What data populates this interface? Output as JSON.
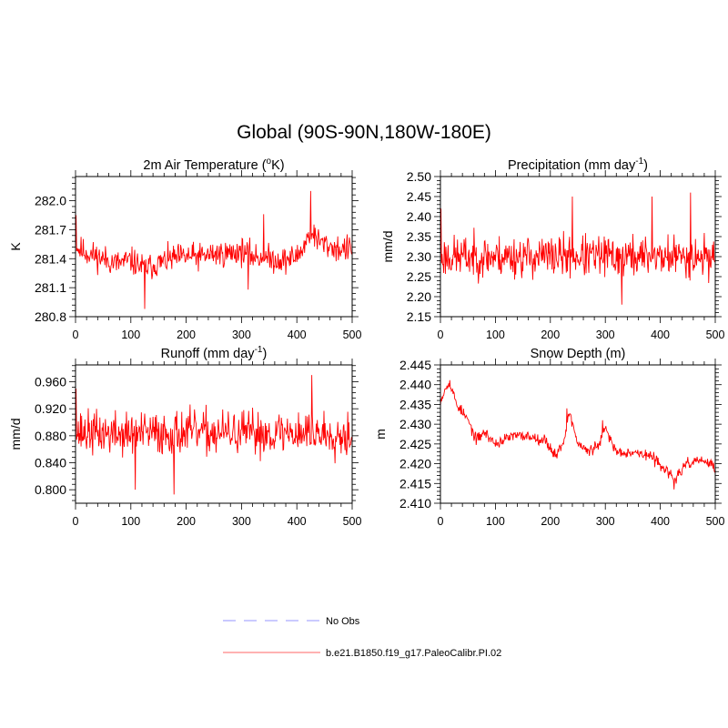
{
  "title": "Global (90S-90N,180W-180E)",
  "colors": {
    "series": "#ff0000",
    "obs": "#aaaaff",
    "legend_model": "#ff9999",
    "axis": "#000000"
  },
  "legend": [
    {
      "label": "No Obs",
      "style": "dashed",
      "color": "#aaaaff"
    },
    {
      "label": "b.e21.B1850.f19_g17.PaleoCalibr.PI.02",
      "style": "solid",
      "color": "#ff9999"
    }
  ],
  "chart_data": [
    {
      "type": "line",
      "title": "2m Air Temperature (",
      "title_sup": "o",
      "title_tail": "K)",
      "ylabel": "K",
      "xlabel": "",
      "xlim": [
        0,
        500
      ],
      "ylim": [
        280.8,
        282.25
      ],
      "xticks": [
        "0",
        "100",
        "200",
        "300",
        "400",
        "500"
      ],
      "yticks": [
        "280.8",
        "281.1",
        "281.4",
        "281.7",
        "282.0"
      ],
      "series_name": "b.e21.B1850.f19_g17.PaleoCalibr.PI.02",
      "n_points": 500,
      "keypoints_x": [
        0,
        5,
        25,
        50,
        75,
        100,
        125,
        150,
        175,
        200,
        225,
        250,
        275,
        300,
        325,
        350,
        375,
        400,
        415,
        425,
        435,
        450,
        475,
        500
      ],
      "keypoints_y": [
        281.6,
        281.5,
        281.45,
        281.4,
        281.35,
        281.38,
        281.3,
        281.35,
        281.4,
        281.42,
        281.42,
        281.45,
        281.45,
        281.48,
        281.42,
        281.4,
        281.38,
        281.42,
        281.55,
        281.7,
        281.6,
        281.55,
        281.5,
        281.5
      ],
      "noise": 0.12,
      "spikes": [
        [
          1,
          281.85
        ],
        [
          125,
          280.88
        ],
        [
          312,
          281.08
        ],
        [
          425,
          282.1
        ],
        [
          340,
          281.86
        ]
      ],
      "seed": 11
    },
    {
      "type": "line",
      "title": "Precipitation (mm day",
      "title_sup": "-1",
      "title_tail": ")",
      "ylabel": "mm/d",
      "xlabel": "",
      "xlim": [
        0,
        500
      ],
      "ylim": [
        2.15,
        2.5
      ],
      "xticks": [
        "0",
        "100",
        "200",
        "300",
        "400",
        "500"
      ],
      "yticks": [
        "2.15",
        "2.20",
        "2.25",
        "2.30",
        "2.35",
        "2.40",
        "2.45",
        "2.50"
      ],
      "series_name": "b.e21.B1850.f19_g17.PaleoCalibr.PI.02",
      "n_points": 500,
      "keypoints_x": [
        0,
        100,
        200,
        300,
        400,
        500
      ],
      "keypoints_y": [
        2.3,
        2.3,
        2.3,
        2.3,
        2.3,
        2.3
      ],
      "noise": 0.045,
      "spikes": [
        [
          1,
          2.42
        ],
        [
          240,
          2.45
        ],
        [
          385,
          2.45
        ],
        [
          455,
          2.46
        ],
        [
          330,
          2.18
        ]
      ],
      "seed": 23
    },
    {
      "type": "line",
      "title": "Runoff (mm day",
      "title_sup": "-1",
      "title_tail": ")",
      "ylabel": "mm/d",
      "xlabel": "",
      "xlim": [
        0,
        500
      ],
      "ylim": [
        0.78,
        0.985
      ],
      "xticks": [
        "0",
        "100",
        "200",
        "300",
        "400",
        "500"
      ],
      "yticks": [
        "0.800",
        "0.840",
        "0.880",
        "0.920",
        "0.960"
      ],
      "series_name": "b.e21.B1850.f19_g17.PaleoCalibr.PI.02",
      "n_points": 500,
      "keypoints_x": [
        0,
        100,
        200,
        300,
        400,
        500
      ],
      "keypoints_y": [
        0.885,
        0.882,
        0.885,
        0.883,
        0.885,
        0.882
      ],
      "noise": 0.028,
      "spikes": [
        [
          1,
          0.95
        ],
        [
          178,
          0.793
        ],
        [
          427,
          0.97
        ],
        [
          108,
          0.8
        ]
      ],
      "seed": 37
    },
    {
      "type": "line",
      "title": "Snow Depth (m)",
      "title_sup": "",
      "title_tail": "",
      "ylabel": "m",
      "xlabel": "",
      "xlim": [
        0,
        500
      ],
      "ylim": [
        2.41,
        2.445
      ],
      "xticks": [
        "0",
        "100",
        "200",
        "300",
        "400",
        "500"
      ],
      "yticks": [
        "2.410",
        "2.415",
        "2.420",
        "2.425",
        "2.430",
        "2.435",
        "2.440",
        "2.445"
      ],
      "series_name": "b.e21.B1850.f19_g17.PaleoCalibr.PI.02",
      "n_points": 500,
      "keypoints_x": [
        0,
        15,
        30,
        50,
        65,
        80,
        100,
        130,
        160,
        190,
        210,
        225,
        235,
        250,
        270,
        290,
        300,
        320,
        350,
        380,
        400,
        425,
        450,
        475,
        500
      ],
      "keypoints_y": [
        2.436,
        2.441,
        2.435,
        2.431,
        2.426,
        2.428,
        2.425,
        2.427,
        2.427,
        2.426,
        2.422,
        2.426,
        2.433,
        2.425,
        2.423,
        2.425,
        2.429,
        2.423,
        2.423,
        2.422,
        2.42,
        2.416,
        2.42,
        2.421,
        2.419
      ],
      "noise": 0.0012,
      "spikes": [
        [
          230,
          2.434
        ],
        [
          295,
          2.431
        ],
        [
          425,
          2.4135
        ]
      ],
      "seed": 53
    }
  ]
}
